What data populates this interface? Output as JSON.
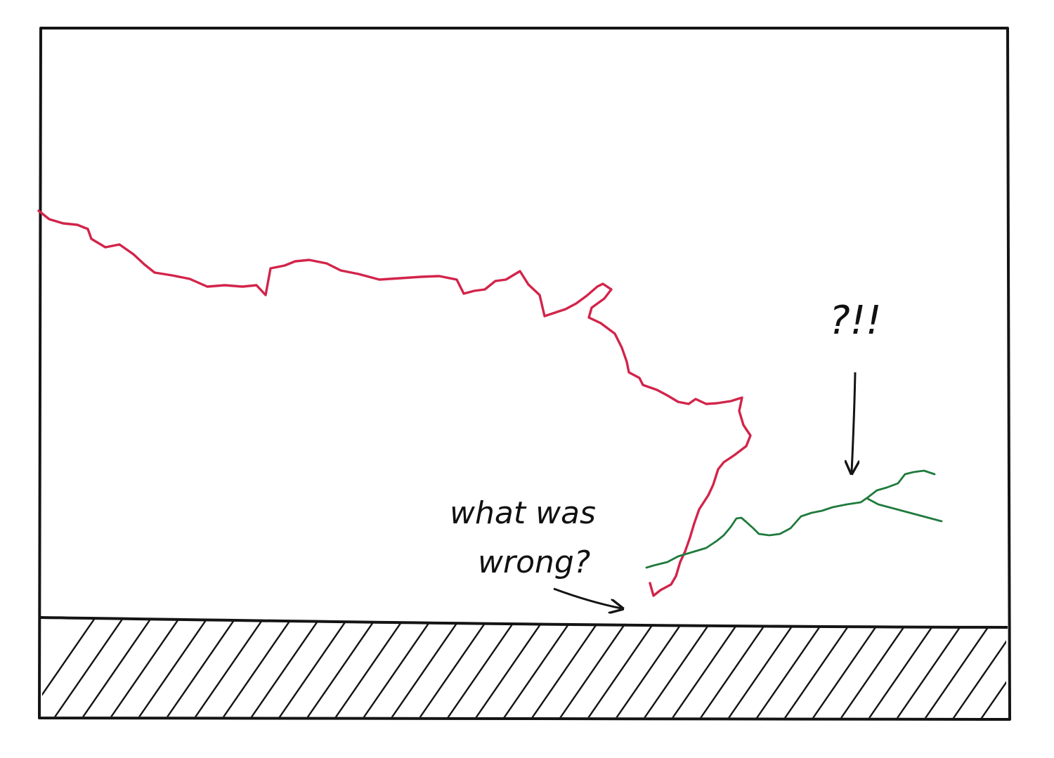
{
  "annotations": {
    "question_note_line1": "what was",
    "question_note_line2": "wrong?",
    "exclamation_note": "?!!"
  },
  "colors": {
    "ink": "#141414",
    "main_path": "#d2244a",
    "alternate_path": "#1f7a3c",
    "paper": "#ffffff"
  }
}
